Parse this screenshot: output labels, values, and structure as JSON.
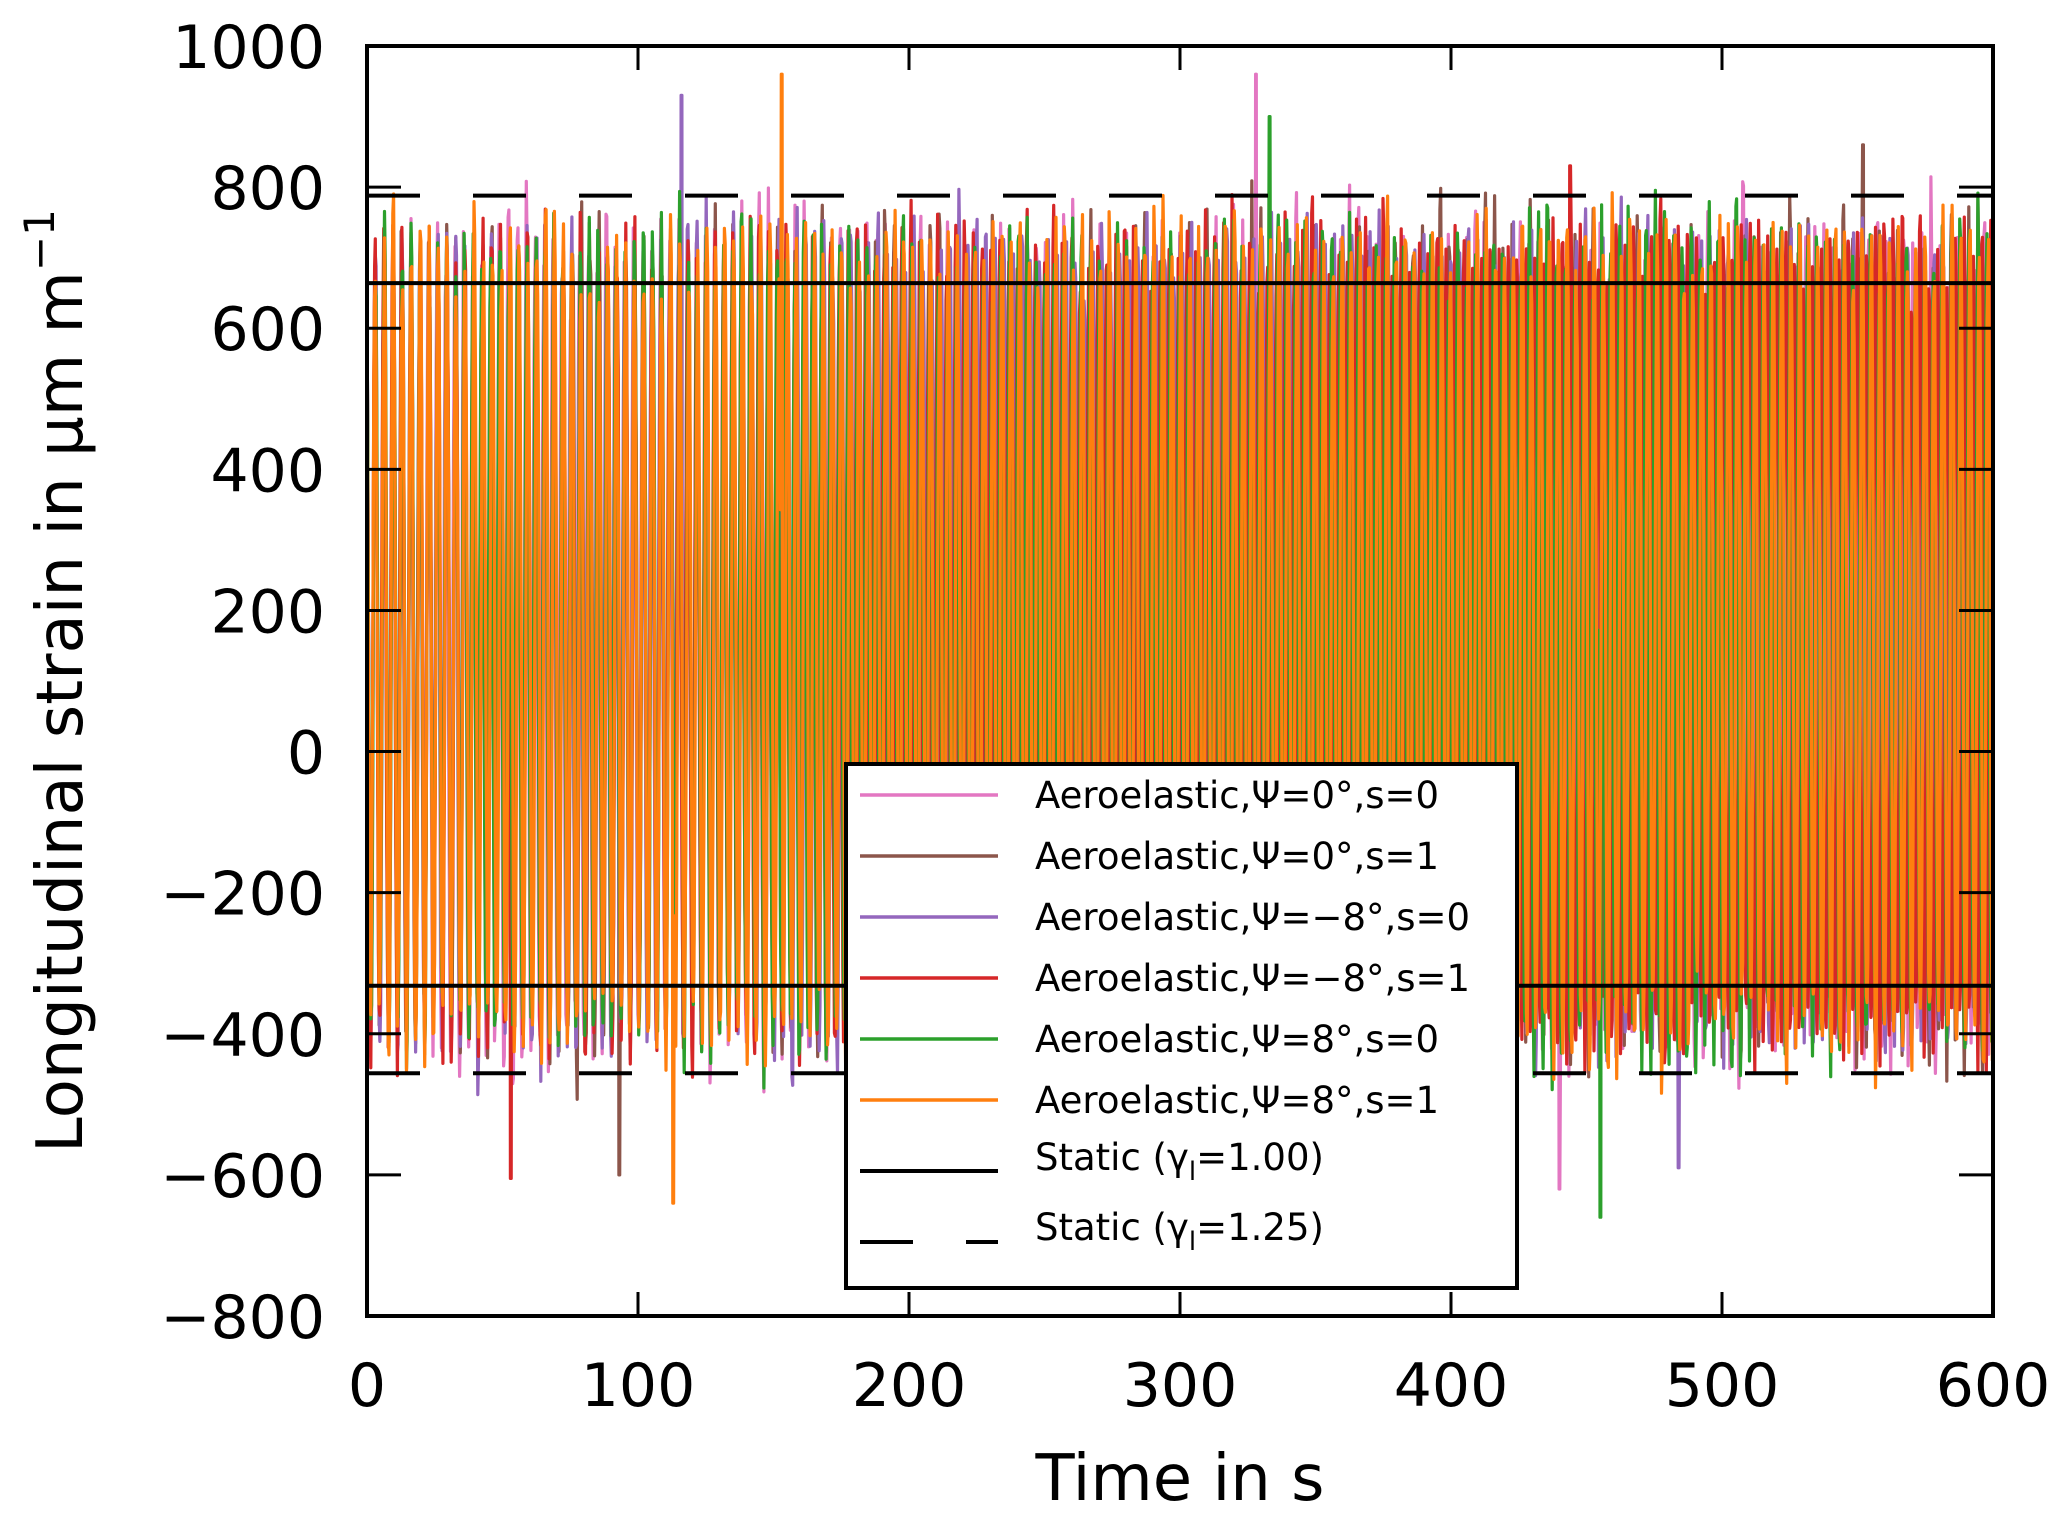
{
  "chart_data": {
    "type": "line",
    "title": "",
    "xlabel": "Time in s",
    "ylabel": "Longitudinal strain in µm m",
    "ylabel_superscript": "−1",
    "xlim": [
      0,
      600
    ],
    "ylim": [
      -800,
      1000
    ],
    "xticks": [
      0,
      100,
      200,
      300,
      400,
      500,
      600
    ],
    "xtick_labels": [
      "0",
      "100",
      "200",
      "300",
      "400",
      "500",
      "600"
    ],
    "yticks": [
      -800,
      -600,
      -400,
      -200,
      0,
      200,
      400,
      600,
      800,
      1000
    ],
    "ytick_labels": [
      "−800",
      "−600",
      "−400",
      "−200",
      "0",
      "200",
      "400",
      "600",
      "800",
      "1000"
    ],
    "grid": false,
    "legend_position": "lower-center",
    "series": [
      {
        "name": "Aeroelastic,Ψ=0°,s=0",
        "color": "#e377c2",
        "style": "solid",
        "mean": 160,
        "amplitude": 560,
        "period_s": 3.3,
        "max": 960,
        "max_t": 328,
        "min": -620,
        "min_t": 440,
        "seed": 11
      },
      {
        "name": "Aeroelastic,Ψ=0°,s=1",
        "color": "#8c564b",
        "style": "solid",
        "mean": 160,
        "amplitude": 560,
        "period_s": 3.3,
        "max": 860,
        "max_t": 552,
        "min": -600,
        "min_t": 93,
        "seed": 23
      },
      {
        "name": "Aeroelastic,Ψ=−8°,s=0",
        "color": "#9467bd",
        "style": "solid",
        "mean": 160,
        "amplitude": 560,
        "period_s": 3.3,
        "max": 930,
        "max_t": 116,
        "min": -590,
        "min_t": 484,
        "seed": 37
      },
      {
        "name": "Aeroelastic,Ψ=−8°,s=1",
        "color": "#d62728",
        "style": "solid",
        "mean": 160,
        "amplitude": 560,
        "period_s": 3.3,
        "max": 830,
        "max_t": 444,
        "min": -605,
        "min_t": 53,
        "seed": 41
      },
      {
        "name": "Aeroelastic,Ψ=8°,s=0",
        "color": "#2ca02c",
        "style": "solid",
        "mean": 160,
        "amplitude": 560,
        "period_s": 3.3,
        "max": 900,
        "max_t": 333,
        "min": -660,
        "min_t": 455,
        "seed": 53
      },
      {
        "name": "Aeroelastic,Ψ=8°,s=1",
        "color": "#ff7f0e",
        "style": "solid",
        "mean": 160,
        "amplitude": 560,
        "period_s": 3.3,
        "max": 960,
        "max_t": 153,
        "min": -640,
        "min_t": 113,
        "seed": 67
      },
      {
        "name": "Static (γl=1.00)",
        "color": "#000000",
        "style": "solid",
        "type": "hlines",
        "values": [
          664,
          -332
        ]
      },
      {
        "name": "Static (γl=1.25)",
        "color": "#000000",
        "style": "dashed",
        "type": "hlines",
        "values": [
          788,
          -456
        ]
      }
    ]
  },
  "legend": {
    "entries": [
      {
        "label": "Aeroelastic,Ψ=0°,s=0",
        "color": "#e377c2",
        "style": "solid"
      },
      {
        "label": "Aeroelastic,Ψ=0°,s=1",
        "color": "#8c564b",
        "style": "solid"
      },
      {
        "label": "Aeroelastic,Ψ=−8°,s=0",
        "color": "#9467bd",
        "style": "solid"
      },
      {
        "label": "Aeroelastic,Ψ=−8°,s=1",
        "color": "#d62728",
        "style": "solid"
      },
      {
        "label": "Aeroelastic,Ψ=8°,s=0",
        "color": "#2ca02c",
        "style": "solid"
      },
      {
        "label": "Aeroelastic,Ψ=8°,s=1",
        "color": "#ff7f0e",
        "style": "solid"
      },
      {
        "label_main": "Static (γ",
        "label_sub": "l",
        "label_end": "=1.00)",
        "color": "#000000",
        "style": "solid"
      },
      {
        "label_main": "Static (γ",
        "label_sub": "l",
        "label_end": "=1.25)",
        "color": "#000000",
        "style": "dashed"
      }
    ]
  }
}
